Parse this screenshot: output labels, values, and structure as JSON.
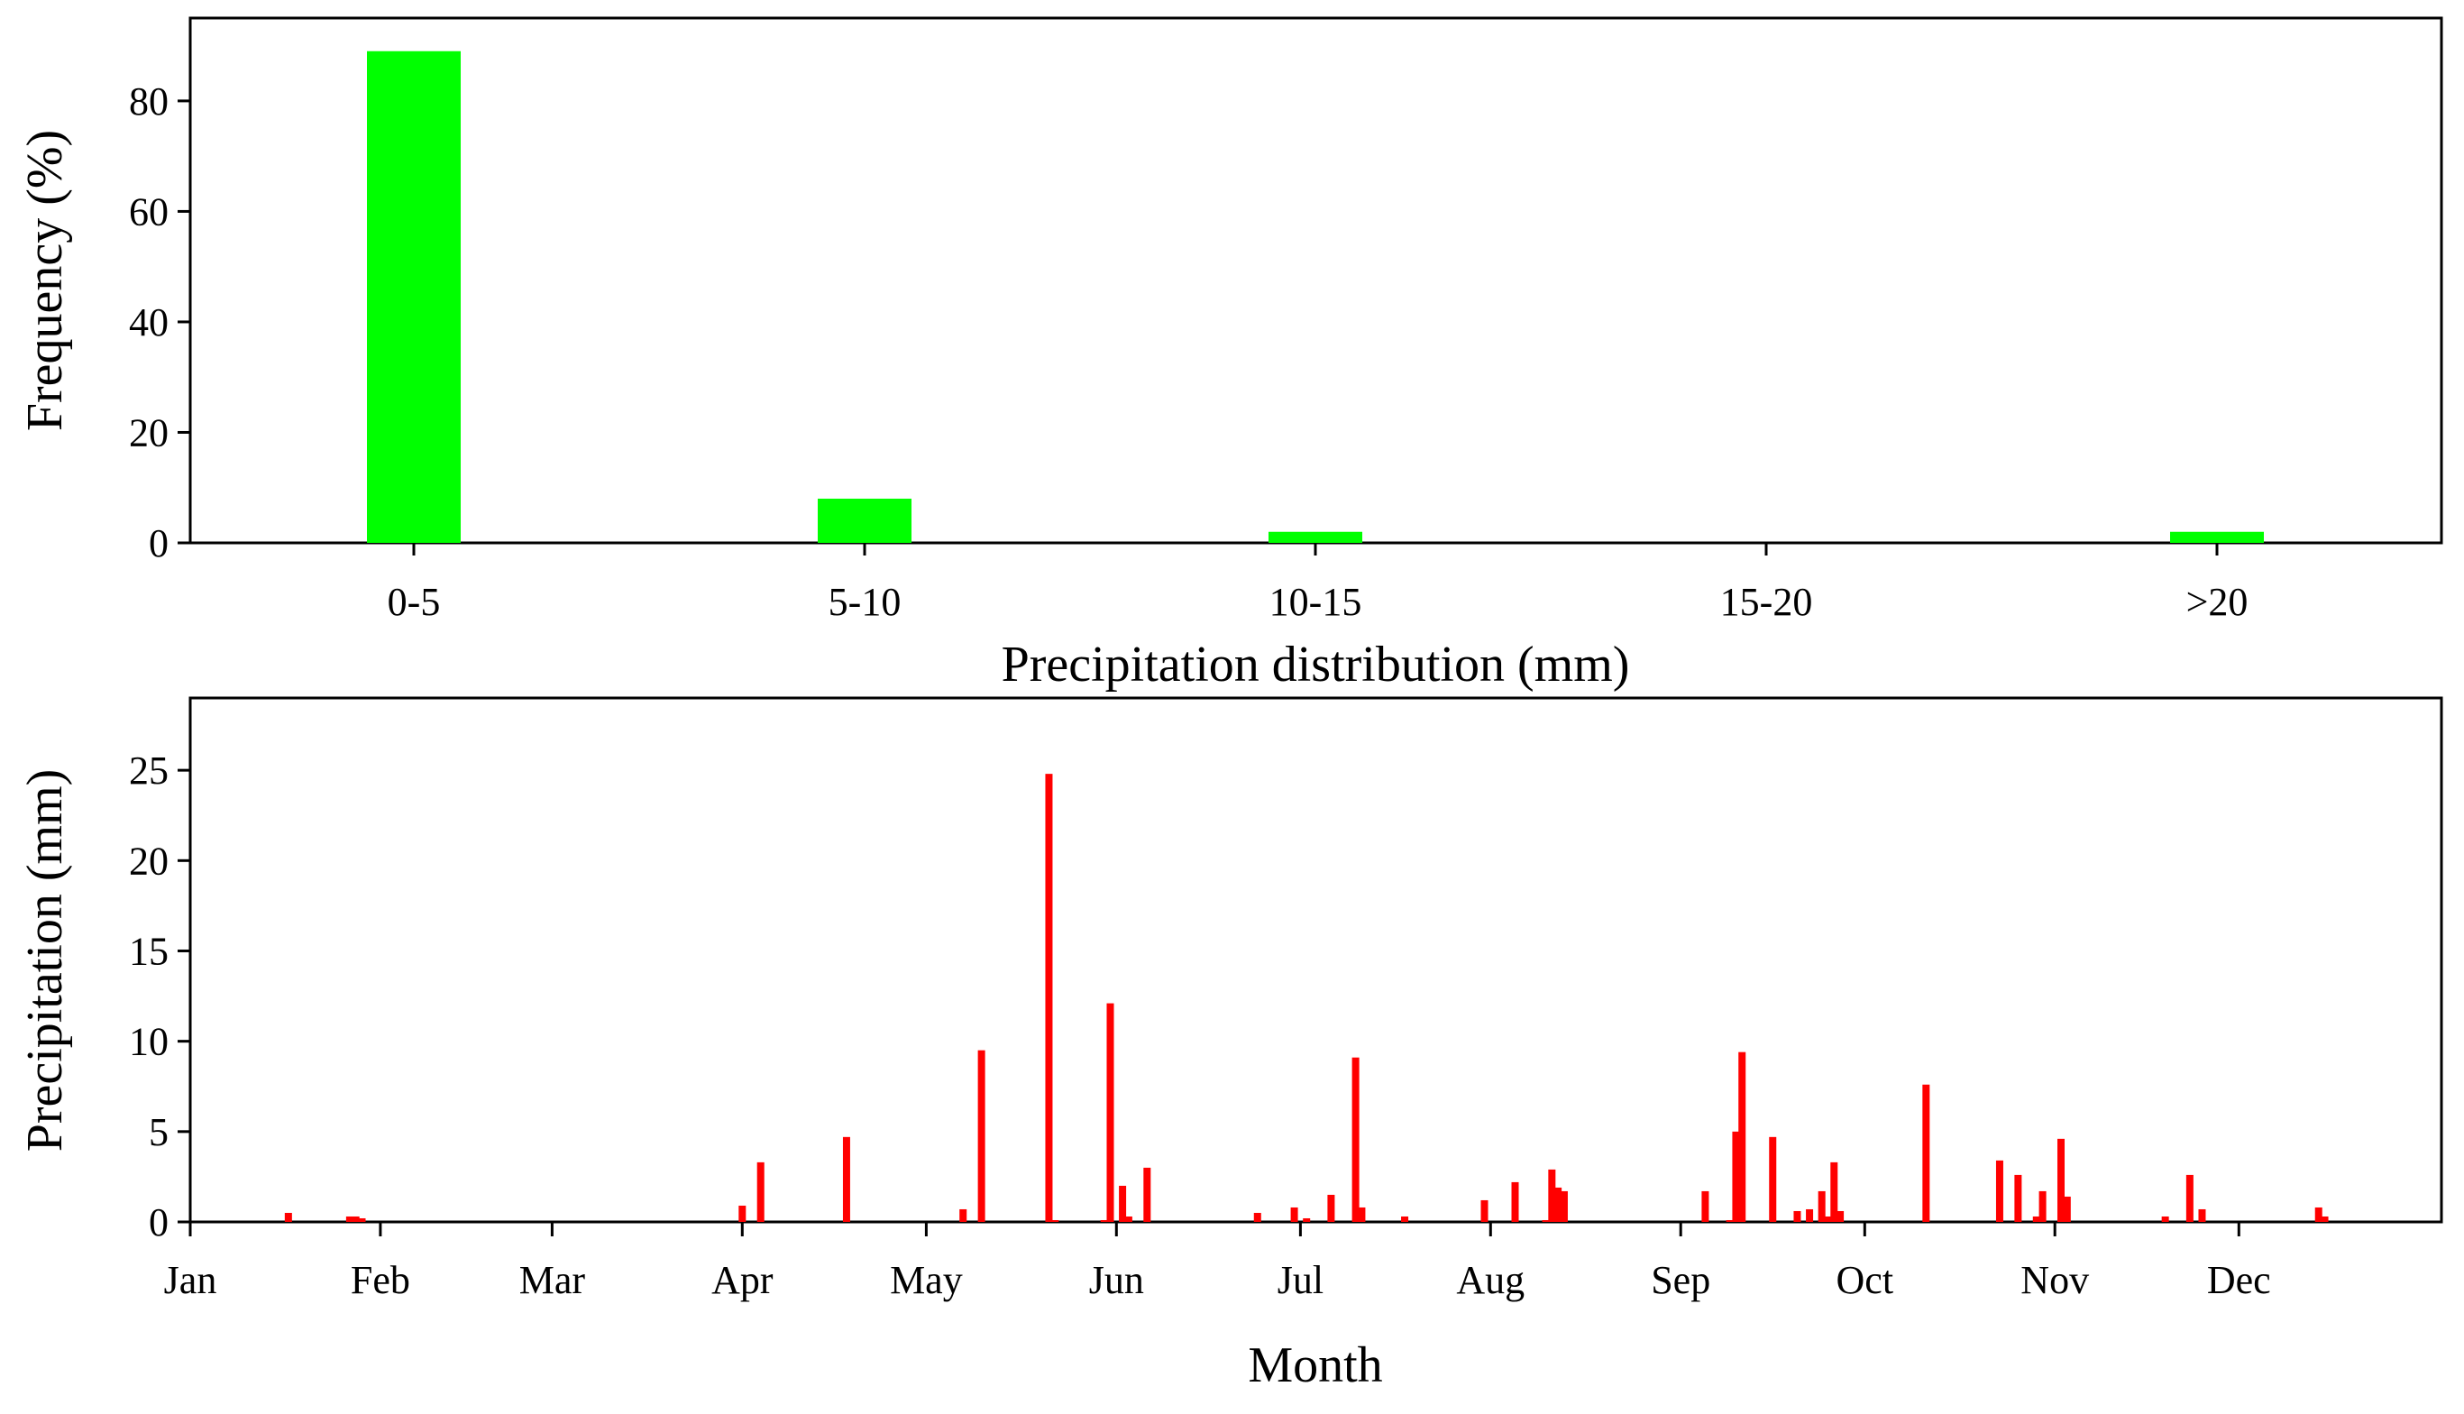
{
  "chart_data": [
    {
      "id": "frequency-histogram",
      "type": "bar",
      "title": "",
      "xlabel": "Precipitation distribution (mm)",
      "ylabel": "Frequency (%)",
      "categories": [
        "0-5",
        "5-10",
        "10-15",
        "15-20",
        ">20"
      ],
      "values": [
        89,
        8,
        2,
        0,
        2
      ],
      "ylim": [
        0,
        95
      ],
      "yticks": [
        0,
        20,
        40,
        60,
        80
      ],
      "grid": false,
      "color": "#00ff00"
    },
    {
      "id": "daily-precipitation",
      "type": "bar",
      "title": "",
      "xlabel": "Month",
      "ylabel": "Precipitation (mm)",
      "x_unit": "day of year",
      "xlim": [
        1,
        366
      ],
      "ylim": [
        0,
        29
      ],
      "yticks": [
        0,
        5,
        10,
        15,
        20,
        25
      ],
      "month_ticks": [
        {
          "label": "Jan",
          "day": 1
        },
        {
          "label": "Feb",
          "day": 32
        },
        {
          "label": "Mar",
          "day": 60
        },
        {
          "label": "Apr",
          "day": 91
        },
        {
          "label": "May",
          "day": 121
        },
        {
          "label": "Jun",
          "day": 152
        },
        {
          "label": "Jul",
          "day": 182
        },
        {
          "label": "Aug",
          "day": 213
        },
        {
          "label": "Sep",
          "day": 244
        },
        {
          "label": "Oct",
          "day": 274
        },
        {
          "label": "Nov",
          "day": 305
        },
        {
          "label": "Dec",
          "day": 335
        }
      ],
      "grid": false,
      "color": "#ff0000",
      "days": [
        17,
        27,
        28,
        29,
        91,
        94,
        108,
        127,
        130,
        141,
        142,
        150,
        151,
        153,
        154,
        157,
        175,
        181,
        183,
        187,
        191,
        192,
        199,
        212,
        217,
        222,
        223,
        224,
        225,
        248,
        252,
        253,
        254,
        259,
        263,
        265,
        267,
        268,
        269,
        270,
        284,
        296,
        299,
        302,
        303,
        306,
        307,
        323,
        327,
        329,
        348,
        349
      ],
      "values": [
        0.5,
        0.3,
        0.3,
        0.2,
        0.9,
        3.3,
        4.7,
        0.7,
        9.5,
        24.8,
        0.1,
        0.1,
        12.1,
        2.0,
        0.3,
        3.0,
        0.5,
        0.8,
        0.2,
        1.5,
        9.1,
        0.8,
        0.3,
        1.2,
        2.2,
        0.1,
        2.9,
        1.9,
        1.7,
        1.7,
        0.1,
        5.0,
        9.4,
        4.7,
        0.6,
        0.7,
        1.7,
        0.3,
        3.3,
        0.6,
        7.6,
        3.4,
        2.6,
        0.3,
        1.7,
        4.6,
        1.4,
        0.3,
        2.6,
        0.7,
        0.8,
        0.3
      ]
    }
  ]
}
